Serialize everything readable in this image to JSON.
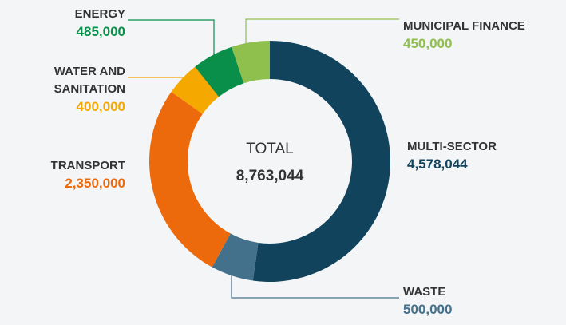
{
  "chart_data": {
    "type": "donut",
    "categories": [
      "MULTI-SECTOR",
      "WASTE",
      "TRANSPORT",
      "WATER AND SANITATION",
      "ENERGY",
      "MUNICIPAL FINANCE"
    ],
    "values": [
      4578044,
      500000,
      2350000,
      400000,
      485000,
      450000
    ],
    "value_labels": [
      "4,578,044",
      "500,000",
      "2,350,000",
      "400,000",
      "485,000",
      "450,000"
    ],
    "colors": [
      "#11435c",
      "#43708a",
      "#ec6a0c",
      "#f5a800",
      "#0a8f4b",
      "#8fbf4d"
    ],
    "center_label": "TOTAL",
    "total": {
      "value": 8763044,
      "label": "8,763,044"
    }
  }
}
